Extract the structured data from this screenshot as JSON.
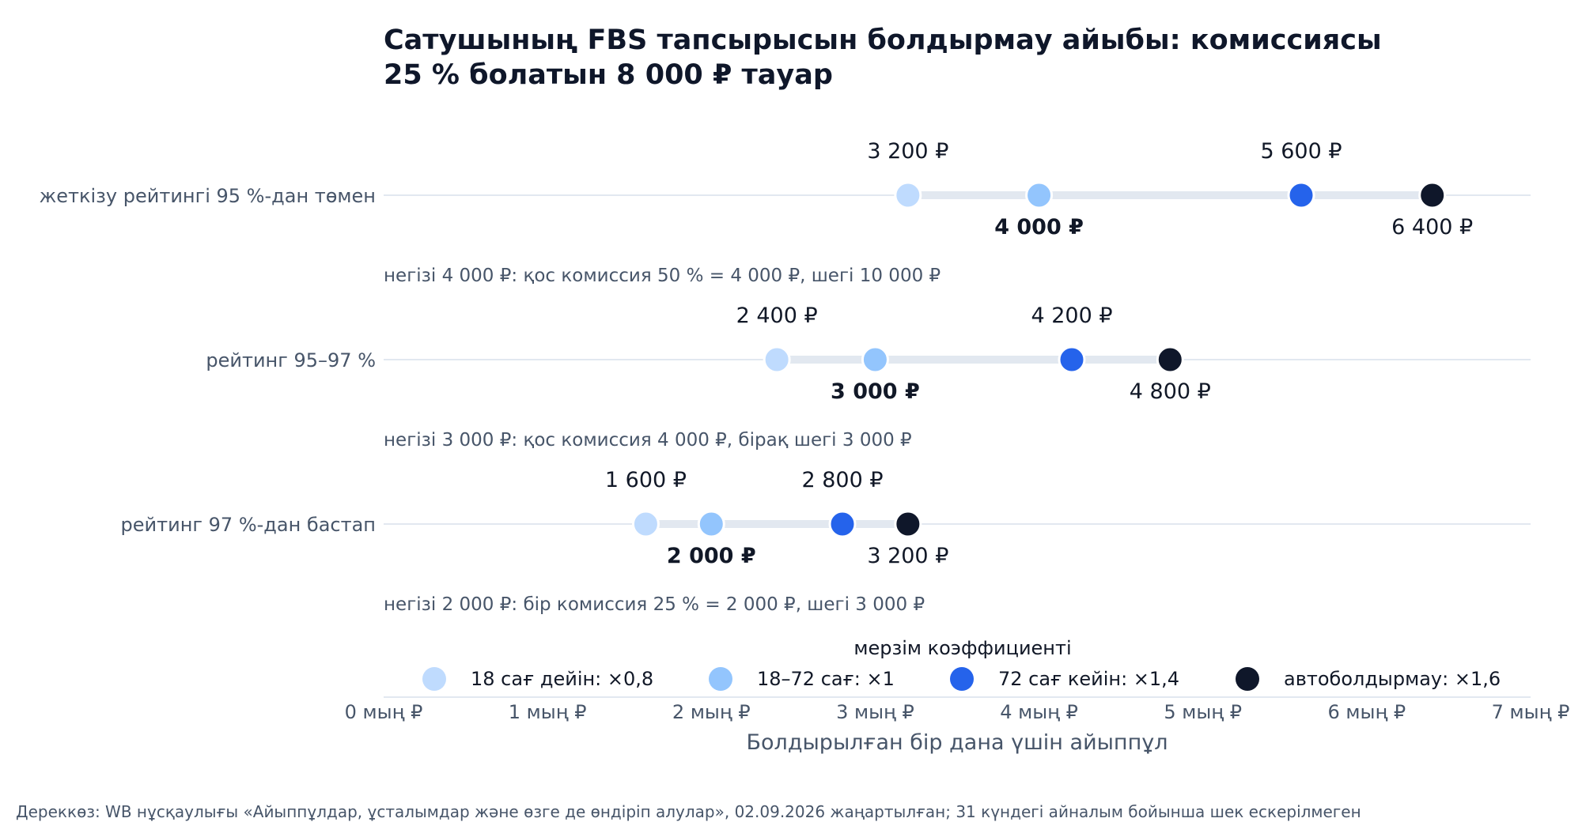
{
  "chart_data": {
    "type": "dot-range",
    "title": "Сатушының FBS тапсырысын болдырмау айыбы: комиссиясы 25 % болатын 8 000 ₽ тауар",
    "title_lines": [
      "Сатушының FBS тапсырысын болдырмау айыбы: комиссиясы",
      "25 % болатын 8 000 ₽ тауар"
    ],
    "xlabel": "Болдырылған бір дана үшін айыппұл",
    "xlim": [
      0,
      7000
    ],
    "x_ticks": [
      {
        "value": 0,
        "label": "0 мың ₽"
      },
      {
        "value": 1000,
        "label": "1 мың ₽"
      },
      {
        "value": 2000,
        "label": "2 мың ₽"
      },
      {
        "value": 3000,
        "label": "3 мың ₽"
      },
      {
        "value": 4000,
        "label": "4 мың ₽"
      },
      {
        "value": 5000,
        "label": "5 мың ₽"
      },
      {
        "value": 6000,
        "label": "6 мың ₽"
      },
      {
        "value": 7000,
        "label": "7 мың ₽"
      }
    ],
    "legend": {
      "title": "мерзім коэффициенті",
      "placement": "bottom-center"
    },
    "series": [
      {
        "name": "18 сағ дейін: ×0,8",
        "color": "#bfdbfe"
      },
      {
        "name": "18–72 сағ: ×1",
        "color": "#93c5fd"
      },
      {
        "name": "72 сағ кейін: ×1,4",
        "color": "#2563eb"
      },
      {
        "name": "автоболдырмау: ×1,6",
        "color": "#0f172a"
      }
    ],
    "categories": [
      {
        "label": "жеткізу рейтингі 95 %-дан төмен",
        "values": [
          3200,
          4000,
          5600,
          6400
        ],
        "value_labels": [
          "3 200 ₽",
          "4 000 ₽",
          "5 600 ₽",
          "6 400 ₽"
        ],
        "note": "негізі 4 000 ₽: қос комиссия 50 % = 4 000 ₽, шегі 10 000 ₽"
      },
      {
        "label": "рейтинг 95–97 %",
        "values": [
          2400,
          3000,
          4200,
          4800
        ],
        "value_labels": [
          "2 400 ₽",
          "3 000 ₽",
          "4 200 ₽",
          "4 800 ₽"
        ],
        "note": "негізі 3 000 ₽: қос комиссия 4 000 ₽, бірақ шегі 3 000 ₽"
      },
      {
        "label": "рейтинг 97 %-дан бастап",
        "values": [
          1600,
          2000,
          2800,
          3200
        ],
        "value_labels": [
          "1 600 ₽",
          "2 000 ₽",
          "2 800 ₽",
          "3 200 ₽"
        ],
        "note": "негізі 2 000 ₽: бір комиссия 25 % = 2 000 ₽, шегі 3 000 ₽"
      }
    ],
    "source": "Дереккөз: WB нұсқаулығы «Айыппұлдар, ұсталымдар және өзге де өндіріп алулар», 02.09.2026 жаңартылған; 31 күндегі айналым бойынша шек ескерілмеген",
    "colors": {
      "track": "#e2e8f0",
      "row_line": "#e2e8f0",
      "axis_line": "#e2e8f0"
    }
  }
}
